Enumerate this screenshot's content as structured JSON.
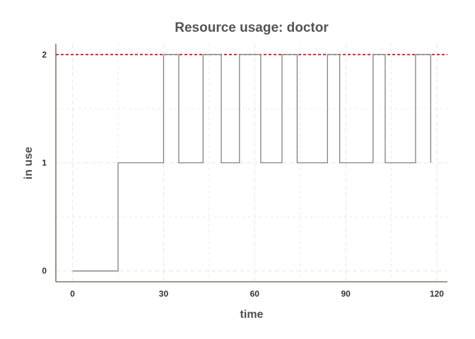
{
  "chart_data": {
    "type": "line",
    "line_style": "step",
    "title": "Resource usage: doctor",
    "xlabel": "time",
    "ylabel": "in use",
    "xlim": [
      -5.5,
      123.5
    ],
    "ylim": [
      -0.1,
      2.1
    ],
    "x_ticks": [
      0,
      30,
      60,
      90,
      120
    ],
    "y_ticks": [
      0,
      1,
      2
    ],
    "grid": true,
    "capacity": 2,
    "colors": {
      "line": "#808080",
      "capacity_line": "#cc0000",
      "grid": "#ece6dc",
      "axis": "#6b5b45"
    },
    "series": [
      {
        "x": [
          0,
          15,
          30,
          35,
          43,
          49,
          55,
          62,
          69,
          74,
          84,
          88,
          99,
          103,
          113,
          118
        ],
        "y": [
          0,
          1,
          2,
          1,
          2,
          1,
          2,
          1,
          2,
          1,
          2,
          1,
          2,
          1,
          2,
          1
        ]
      }
    ]
  }
}
